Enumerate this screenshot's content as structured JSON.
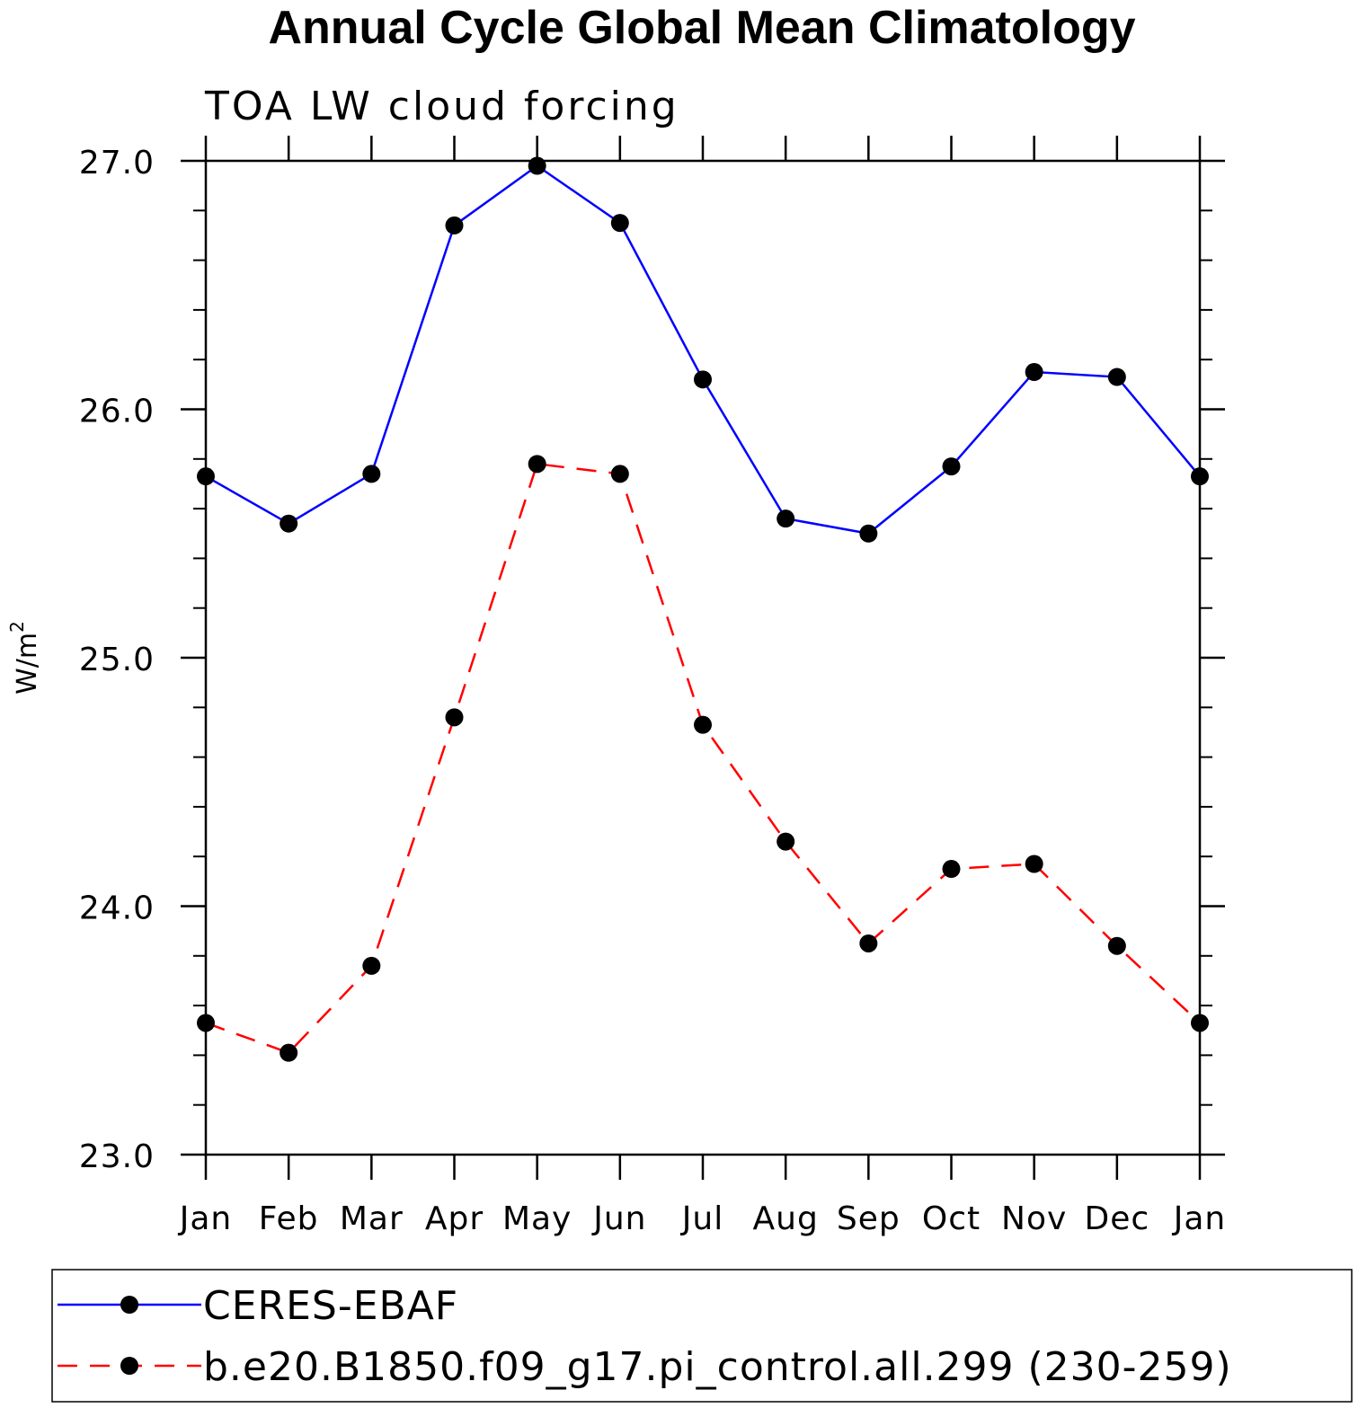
{
  "chart_data": {
    "type": "line",
    "title": "Annual Cycle Global Mean Climatology",
    "subtitle": "TOA LW cloud forcing",
    "ylabel": "W/m",
    "ylabel_superscript": "2",
    "xlabel": "",
    "categories": [
      "Jan",
      "Feb",
      "Mar",
      "Apr",
      "May",
      "Jun",
      "Jul",
      "Aug",
      "Sep",
      "Oct",
      "Nov",
      "Dec",
      "Jan"
    ],
    "ylim": [
      23.0,
      27.0
    ],
    "y_ticks": [
      "23.0",
      "24.0",
      "25.0",
      "26.0",
      "27.0"
    ],
    "y_tick_values": [
      23.0,
      24.0,
      25.0,
      26.0,
      27.0
    ],
    "y_minor_step": 0.2,
    "grid": false,
    "legend_position": "bottom",
    "series": [
      {
        "name": "CERES-EBAF",
        "color": "#0000ff",
        "line_style": "solid",
        "marker": "filled-circle",
        "values": [
          25.73,
          25.54,
          25.74,
          26.74,
          26.98,
          26.75,
          26.12,
          25.56,
          25.5,
          25.77,
          26.15,
          26.13,
          25.73
        ]
      },
      {
        "name": "b.e20.B1850.f09_g17.pi_control.all.299 (230-259)",
        "color": "#ff0000",
        "line_style": "dashed",
        "marker": "filled-circle",
        "values": [
          23.53,
          23.41,
          23.76,
          24.76,
          25.78,
          25.74,
          24.73,
          24.26,
          23.85,
          24.15,
          24.17,
          23.84,
          23.53
        ]
      }
    ]
  }
}
